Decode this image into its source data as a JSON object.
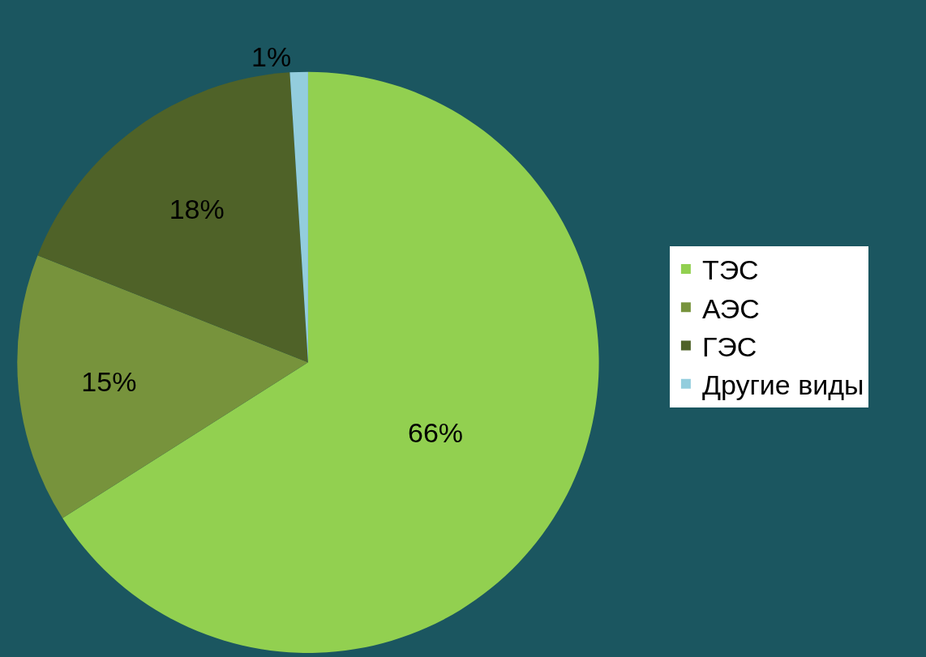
{
  "chart_data": {
    "type": "pie",
    "categories": [
      "ТЭС",
      "АЭС",
      "ГЭС",
      "Другие виды"
    ],
    "values": [
      66,
      15,
      18,
      1
    ],
    "colors": [
      "#92d050",
      "#77933c",
      "#4f6228",
      "#93cddd"
    ],
    "value_labels": [
      "66%",
      "15%",
      "18%",
      "1%"
    ],
    "legend": "right"
  }
}
